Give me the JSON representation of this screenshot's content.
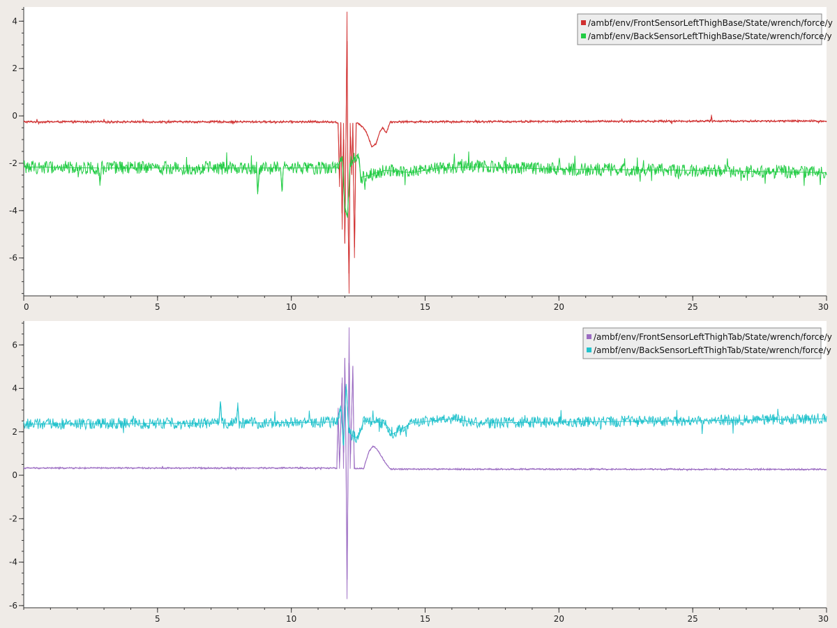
{
  "chart_data": [
    {
      "type": "line",
      "title": "",
      "xlabel": "",
      "ylabel": "",
      "xlim": [
        0,
        30
      ],
      "ylim": [
        -7.6,
        4.6
      ],
      "x_ticks": [
        0,
        5,
        10,
        15,
        20,
        25,
        30
      ],
      "x_tick_labels": [
        "0",
        "5",
        "10",
        "15",
        "20",
        "25",
        "30"
      ],
      "y_ticks": [
        4,
        2,
        0,
        -2,
        -4,
        -6
      ],
      "y_tick_labels": [
        "4",
        "2",
        "0",
        "-2",
        "-4",
        "-6"
      ],
      "grid": false,
      "legend_position": "top-right",
      "series": [
        {
          "name": "/ambf/env/FrontSensorLeftThighBase/State/wrench/force/y",
          "color": "#d03030",
          "noise": 0.05,
          "keyframes": [
            [
              0,
              -0.25
            ],
            [
              11.6,
              -0.25
            ],
            [
              11.75,
              -0.3
            ],
            [
              11.8,
              -3.0
            ],
            [
              11.85,
              -0.3
            ],
            [
              11.9,
              -4.8
            ],
            [
              11.95,
              -0.3
            ],
            [
              12.0,
              -5.4
            ],
            [
              12.05,
              -0.3
            ],
            [
              12.08,
              4.4
            ],
            [
              12.12,
              -4.0
            ],
            [
              12.16,
              -7.5
            ],
            [
              12.2,
              -0.3
            ],
            [
              12.26,
              -2.5
            ],
            [
              12.3,
              -0.3
            ],
            [
              12.36,
              -6.0
            ],
            [
              12.42,
              -0.3
            ],
            [
              12.5,
              -0.3
            ],
            [
              12.7,
              -0.5
            ],
            [
              12.85,
              -0.8
            ],
            [
              13.0,
              -1.3
            ],
            [
              13.15,
              -1.2
            ],
            [
              13.3,
              -0.7
            ],
            [
              13.4,
              -0.5
            ],
            [
              13.55,
              -0.7
            ],
            [
              13.7,
              -0.25
            ],
            [
              25.68,
              -0.22
            ],
            [
              25.7,
              0.05
            ],
            [
              25.73,
              -0.22
            ],
            [
              30,
              -0.22
            ]
          ]
        },
        {
          "name": "/ambf/env/BackSensorLeftThighBase/State/wrench/force/y",
          "color": "#22cc44",
          "noise": 0.28,
          "keyframes": [
            [
              0,
              -2.15
            ],
            [
              2.8,
              -2.2
            ],
            [
              2.85,
              -2.95
            ],
            [
              2.9,
              -2.2
            ],
            [
              8.7,
              -2.2
            ],
            [
              8.75,
              -3.2
            ],
            [
              8.8,
              -2.2
            ],
            [
              9.6,
              -2.2
            ],
            [
              9.65,
              -3.2
            ],
            [
              9.7,
              -2.2
            ],
            [
              11.7,
              -2.2
            ],
            [
              11.9,
              -1.7
            ],
            [
              12.0,
              -3.8
            ],
            [
              12.1,
              -4.3
            ],
            [
              12.2,
              -2.0
            ],
            [
              12.5,
              -1.6
            ],
            [
              12.6,
              -2.6
            ],
            [
              13.5,
              -2.3
            ],
            [
              14.5,
              -2.4
            ],
            [
              15.5,
              -2.2
            ],
            [
              17.0,
              -2.15
            ],
            [
              20.0,
              -2.25
            ],
            [
              25.0,
              -2.3
            ],
            [
              30,
              -2.4
            ]
          ]
        }
      ]
    },
    {
      "type": "line",
      "title": "",
      "xlabel": "",
      "ylabel": "",
      "xlim": [
        0,
        30
      ],
      "ylim": [
        -6.1,
        7.1
      ],
      "x_ticks": [
        5,
        10,
        15,
        20,
        25,
        30
      ],
      "x_tick_labels": [
        "5",
        "10",
        "15",
        "20",
        "25",
        "30"
      ],
      "y_ticks": [
        6,
        4,
        2,
        0,
        -2,
        -4,
        -6
      ],
      "y_tick_labels": [
        "6",
        "4",
        "2",
        "0",
        "-2",
        "-4",
        "-6"
      ],
      "grid": false,
      "legend_position": "top-right",
      "series": [
        {
          "name": "/ambf/env/FrontSensorLeftThighTab/State/wrench/force/y",
          "color": "#9b6cc2",
          "noise": 0.04,
          "keyframes": [
            [
              0,
              0.33
            ],
            [
              11.6,
              0.33
            ],
            [
              11.7,
              0.3
            ],
            [
              11.75,
              3.1
            ],
            [
              11.8,
              0.3
            ],
            [
              11.9,
              4.5
            ],
            [
              11.95,
              0.3
            ],
            [
              12.0,
              5.4
            ],
            [
              12.05,
              0.3
            ],
            [
              12.08,
              -5.7
            ],
            [
              12.12,
              0.3
            ],
            [
              12.16,
              6.8
            ],
            [
              12.2,
              0.3
            ],
            [
              12.3,
              5.0
            ],
            [
              12.35,
              0.3
            ],
            [
              12.45,
              0.3
            ],
            [
              12.7,
              0.3
            ],
            [
              12.9,
              1.1
            ],
            [
              13.05,
              1.35
            ],
            [
              13.2,
              1.2
            ],
            [
              13.4,
              0.8
            ],
            [
              13.55,
              0.5
            ],
            [
              13.7,
              0.28
            ],
            [
              14.6,
              0.28
            ],
            [
              30,
              0.27
            ]
          ]
        },
        {
          "name": "/ambf/env/BackSensorLeftThighTab/State/wrench/force/y",
          "color": "#22c2cc",
          "noise": 0.26,
          "keyframes": [
            [
              0,
              2.35
            ],
            [
              7.3,
              2.4
            ],
            [
              7.35,
              3.4
            ],
            [
              7.4,
              2.4
            ],
            [
              7.95,
              2.4
            ],
            [
              8.0,
              3.35
            ],
            [
              8.05,
              2.4
            ],
            [
              11.7,
              2.45
            ],
            [
              11.85,
              3.2
            ],
            [
              11.95,
              1.4
            ],
            [
              12.05,
              4.2
            ],
            [
              12.15,
              2.0
            ],
            [
              12.3,
              1.8
            ],
            [
              12.5,
              1.7
            ],
            [
              12.7,
              2.5
            ],
            [
              13.5,
              2.4
            ],
            [
              13.8,
              1.9
            ],
            [
              14.5,
              2.4
            ],
            [
              16.0,
              2.6
            ],
            [
              17.0,
              2.4
            ],
            [
              20.0,
              2.45
            ],
            [
              25.0,
              2.5
            ],
            [
              30,
              2.6
            ]
          ]
        }
      ]
    }
  ]
}
